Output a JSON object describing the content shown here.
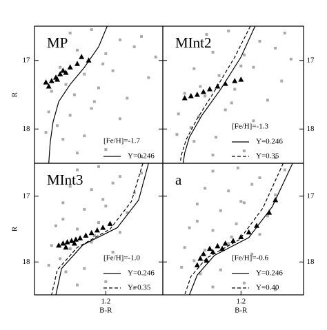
{
  "chart_data": [
    {
      "type": "scatter",
      "label": "MP",
      "annotation": "[Fe/H]=-1.7",
      "ylabel": "R",
      "xlim": [
        0.7,
        1.6
      ],
      "ylim": [
        16.5,
        18.5
      ],
      "yticks": [
        17,
        18
      ],
      "yinverted": true,
      "series": [
        {
          "color": "#aaaaaa",
          "marker": "dot",
          "x": [
            0.95,
            1.1,
            1.3,
            1.45,
            1.0,
            1.2,
            1.4,
            1.55,
            0.88,
            1.05,
            1.25,
            1.5,
            0.82,
            0.98,
            1.15,
            1.35,
            0.8,
            0.95,
            1.1,
            1.3,
            0.78,
            0.9,
            1.05,
            1.2,
            1.45,
            0.86,
            1.0,
            1.12,
            0.92,
            1.18
          ],
          "values": [
            16.6,
            16.55,
            16.7,
            16.65,
            16.85,
            16.9,
            16.8,
            16.95,
            17.1,
            17.2,
            17.15,
            17.25,
            17.45,
            17.5,
            17.4,
            17.55,
            17.75,
            17.8,
            17.7,
            17.85,
            18.05,
            18.15,
            18.1,
            18.3,
            18.4,
            17.95,
            18.35,
            17.6,
            17.35,
            17.05
          ]
        },
        {
          "color": "#000000",
          "marker": "triangle",
          "x": [
            0.78,
            0.82,
            0.85,
            0.88,
            0.9,
            0.95,
            1.0,
            1.03,
            1.08,
            0.86,
            0.92,
            0.8
          ],
          "values": [
            17.32,
            17.3,
            17.25,
            17.2,
            17.15,
            17.1,
            17.05,
            16.95,
            17.0,
            17.28,
            17.18,
            17.38
          ]
        },
        {
          "name": "Y=0.246",
          "color": "#000000",
          "marker": "line",
          "style": "solid",
          "x": [
            1.21,
            1.15,
            1.05,
            0.95,
            0.87,
            0.83,
            0.81,
            0.8
          ],
          "values": [
            16.5,
            16.8,
            17.1,
            17.35,
            17.6,
            17.9,
            18.2,
            18.5
          ]
        }
      ]
    },
    {
      "type": "scatter",
      "label": "MInt2",
      "annotation": "[Fe/H]=-1.3",
      "xlim": [
        0.7,
        1.6
      ],
      "ylim": [
        16.5,
        18.5
      ],
      "yticks": [
        17,
        18
      ],
      "yinverted": true,
      "series": [
        {
          "color": "#aaaaaa",
          "marker": "dot",
          "x": [
            0.98,
            1.12,
            1.32,
            1.48,
            1.02,
            1.22,
            1.42,
            1.52,
            0.9,
            1.06,
            1.28,
            1.46,
            0.84,
            0.97,
            1.16,
            1.37,
            0.8,
            0.93,
            1.1,
            1.28,
            0.79,
            0.9,
            1.04,
            1.22,
            1.42,
            0.88,
            1.02,
            1.14,
            0.94,
            1.2
          ],
          "values": [
            16.62,
            16.57,
            16.72,
            16.6,
            16.88,
            16.92,
            16.82,
            16.98,
            17.12,
            17.22,
            17.1,
            17.3,
            17.48,
            17.52,
            17.42,
            17.58,
            17.78,
            17.82,
            17.72,
            17.88,
            18.08,
            18.18,
            18.12,
            18.32,
            18.42,
            17.98,
            18.38,
            17.62,
            17.38,
            17.08
          ]
        },
        {
          "color": "#000000",
          "marker": "triangle",
          "x": [
            0.84,
            0.88,
            0.92,
            0.96,
            1.0,
            1.05,
            1.1,
            1.16,
            1.2
          ],
          "values": [
            17.55,
            17.52,
            17.5,
            17.46,
            17.42,
            17.38,
            17.34,
            17.3,
            17.28
          ]
        },
        {
          "name": "Y=0.246",
          "color": "#000000",
          "marker": "line",
          "style": "solid",
          "x": [
            1.29,
            1.2,
            1.07,
            0.95,
            0.87,
            0.84,
            0.83
          ],
          "values": [
            16.5,
            16.95,
            17.42,
            17.8,
            18.12,
            18.35,
            18.5
          ]
        },
        {
          "name": "Y=0.35",
          "color": "#000000",
          "marker": "line",
          "style": "dashed",
          "x": [
            1.26,
            1.16,
            1.03,
            0.92,
            0.85,
            0.82,
            0.81
          ],
          "values": [
            16.5,
            16.95,
            17.45,
            17.85,
            18.15,
            18.37,
            18.5
          ]
        }
      ]
    },
    {
      "type": "scatter",
      "label": "MInt3",
      "annotation": "[Fe/H]=-1.0",
      "ylabel": "R",
      "xlabel": "B-R",
      "xlim": [
        0.7,
        1.6
      ],
      "xticks": [
        1.2
      ],
      "ylim": [
        16.5,
        18.5
      ],
      "yticks": [
        17,
        18
      ],
      "yinverted": true,
      "series": [
        {
          "color": "#aaaaaa",
          "marker": "dot",
          "x": [
            1.0,
            1.15,
            1.3,
            1.45,
            0.95,
            1.1,
            1.25,
            1.4,
            0.9,
            1.05,
            1.2,
            1.35,
            0.85,
            1.0,
            1.15,
            1.3,
            0.82,
            0.95,
            1.1,
            1.25,
            0.8,
            0.92,
            1.05,
            1.2,
            1.4,
            0.88,
            1.0,
            1.12,
            0.9,
            1.18
          ],
          "values": [
            16.6,
            16.55,
            16.7,
            16.65,
            16.85,
            16.9,
            16.8,
            16.95,
            17.1,
            17.2,
            17.15,
            17.25,
            17.45,
            17.5,
            17.4,
            17.55,
            17.75,
            17.8,
            17.7,
            17.85,
            18.05,
            18.15,
            18.1,
            18.3,
            18.4,
            17.95,
            18.35,
            17.6,
            17.35,
            17.05
          ]
        },
        {
          "color": "#000000",
          "marker": "triangle",
          "x": [
            0.87,
            0.9,
            0.93,
            0.96,
            0.99,
            1.02,
            1.06,
            1.1,
            1.14,
            1.18,
            1.23,
            0.92,
            0.98
          ],
          "values": [
            17.75,
            17.72,
            17.7,
            17.68,
            17.66,
            17.64,
            17.6,
            17.56,
            17.52,
            17.48,
            17.42,
            17.78,
            17.72
          ]
        },
        {
          "name": "Y=0.246",
          "color": "#000000",
          "marker": "line",
          "style": "solid",
          "x": [
            1.5,
            1.43,
            1.28,
            1.04,
            0.89,
            0.85
          ],
          "values": [
            16.5,
            17.06,
            17.48,
            17.74,
            18.1,
            18.5
          ]
        },
        {
          "name": "Y=0.35",
          "color": "#000000",
          "marker": "line",
          "style": "dashed",
          "x": [
            1.46,
            1.38,
            1.23,
            1.0,
            0.86,
            0.82
          ],
          "values": [
            16.5,
            17.08,
            17.5,
            17.78,
            18.12,
            18.5
          ]
        }
      ]
    },
    {
      "type": "scatter",
      "label": "a",
      "annotation": "[Fe/H]=-0.6",
      "xlabel": "B-R",
      "xlim": [
        0.7,
        1.6
      ],
      "xticks": [
        1.2
      ],
      "ylim": [
        16.5,
        18.5
      ],
      "yticks": [
        17,
        18
      ],
      "yinverted": true,
      "series": [
        {
          "color": "#aaaaaa",
          "marker": "dot",
          "x": [
            1.02,
            1.18,
            1.32,
            1.48,
            0.97,
            1.12,
            1.27,
            1.42,
            0.92,
            1.07,
            1.22,
            1.37,
            0.87,
            1.02,
            1.17,
            1.32,
            0.84,
            0.97,
            1.12,
            1.27,
            0.82,
            0.94,
            1.07,
            1.22,
            1.42,
            0.9,
            1.02,
            1.14,
            0.92,
            1.2
          ],
          "values": [
            16.62,
            16.57,
            16.72,
            16.6,
            16.88,
            16.92,
            16.82,
            16.98,
            17.12,
            17.22,
            17.1,
            17.3,
            17.48,
            17.52,
            17.42,
            17.58,
            17.78,
            17.82,
            17.72,
            17.88,
            18.08,
            18.18,
            18.12,
            18.32,
            18.42,
            17.98,
            18.38,
            17.62,
            17.38,
            17.08
          ]
        },
        {
          "color": "#000000",
          "marker": "triangle",
          "x": [
            1.42,
            1.38,
            1.3,
            1.25,
            1.2,
            1.15,
            1.1,
            1.05,
            1.0,
            0.96,
            0.94,
            0.98,
            1.02,
            1.08,
            0.92
          ],
          "values": [
            17.06,
            17.25,
            17.45,
            17.55,
            17.62,
            17.68,
            17.72,
            17.76,
            17.8,
            17.88,
            17.95,
            17.98,
            17.85,
            17.8,
            18.05
          ]
        },
        {
          "name": "Y=0.246",
          "color": "#000000",
          "marker": "line",
          "style": "solid",
          "x": [
            1.53,
            1.4,
            1.25,
            1.03,
            0.92,
            0.87
          ],
          "values": [
            16.5,
            17.16,
            17.63,
            17.9,
            18.2,
            18.5
          ]
        },
        {
          "name": "Y=0.40",
          "color": "#000000",
          "marker": "line",
          "style": "dashed",
          "x": [
            1.47,
            1.34,
            1.19,
            0.98,
            0.88,
            0.84
          ],
          "values": [
            16.5,
            17.18,
            17.66,
            17.94,
            18.22,
            18.5
          ]
        }
      ]
    }
  ]
}
